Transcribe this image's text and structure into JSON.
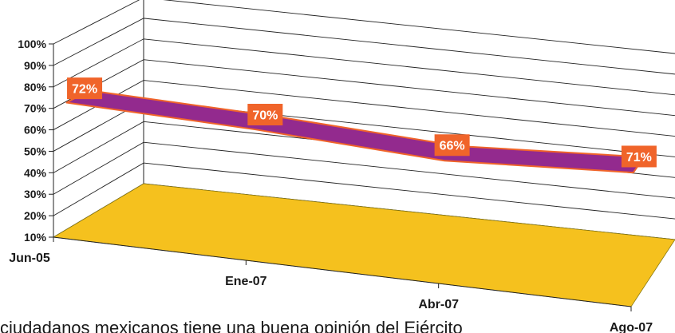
{
  "caption": "ciudadanos mexicanos tiene una buena opinión del Ejército",
  "chart_data": {
    "type": "area",
    "style": "3d-ribbon",
    "categories": [
      "Jun-05",
      "Ene-07",
      "Abr-07",
      "Ago-07"
    ],
    "series": [
      {
        "values": [
          72,
          70,
          66,
          71
        ],
        "data_labels": [
          "72%",
          "70%",
          "66%",
          "71%"
        ]
      }
    ],
    "y_ticks": [
      "10%",
      "20%",
      "30%",
      "40%",
      "50%",
      "60%",
      "70%",
      "80%",
      "90%",
      "100%"
    ],
    "ylim": [
      10,
      100
    ],
    "grid": true,
    "colors": {
      "ribbon": "#932a8e",
      "ribbon_edge": "#f0642a",
      "floor": "#f5c11e",
      "label_bg": "#f0642a",
      "label_text": "#ffffff",
      "grid": "#222222"
    }
  }
}
